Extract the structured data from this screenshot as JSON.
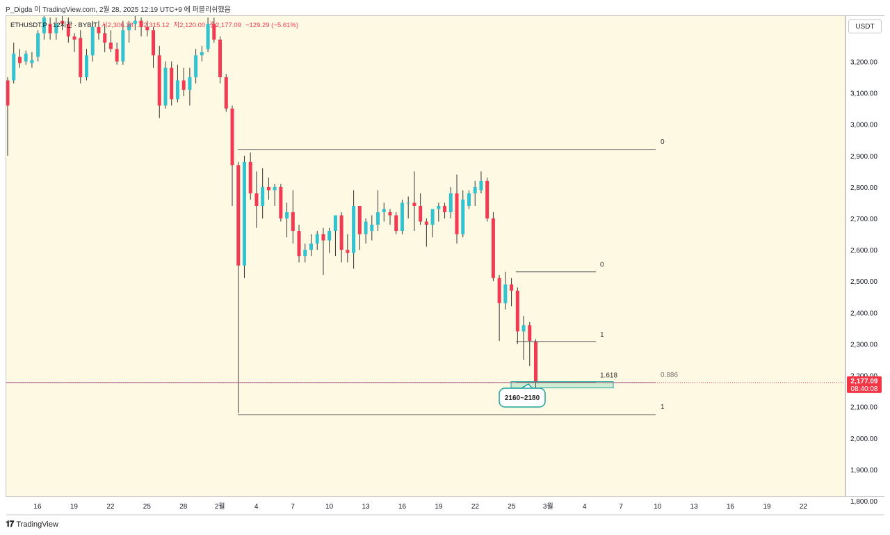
{
  "header": {
    "publisher_line": "P_Digda 이 TradingView.com, 2월 28, 2025 12:19 UTC+9 에 퍼블리쉬했음"
  },
  "legend": {
    "symbol": "ETHUSDT.P · 12시간 · BYBIT",
    "open": "시2,306.38",
    "high": "고2,315.12",
    "low": "저2,120.00",
    "close": "종2,177.09",
    "change": "−129.29 (−5.61%)"
  },
  "price_axis": {
    "currency_button": "USDT",
    "ticks": [
      "3,200.00",
      "3,100.00",
      "3,000.00",
      "2,900.00",
      "2,800.00",
      "2,700.00",
      "2,600.00",
      "2,500.00",
      "2,400.00",
      "2,300.00",
      "2,200.00",
      "2,100.00",
      "2,000.00",
      "1,900.00",
      "1,800.00"
    ],
    "last_price_label": "2,177.09",
    "countdown_label": "08:40:08"
  },
  "time_axis": {
    "ticks": [
      "16",
      "19",
      "22",
      "25",
      "28",
      "2월",
      "4",
      "7",
      "10",
      "13",
      "16",
      "19",
      "22",
      "25",
      "3월",
      "4",
      "7",
      "10",
      "13",
      "16",
      "19",
      "22"
    ]
  },
  "footer": {
    "brand": "TradingView"
  },
  "colors": {
    "background": "#fdf9e3",
    "up": "#31c3cf",
    "down": "#f23b52",
    "last_price": "#f23645",
    "fib_line": "#555555",
    "zone": "#1aa19b"
  },
  "chart_data": {
    "type": "candlestick",
    "symbol": "ETHUSDT.P",
    "timeframe": "12h",
    "ylim": [
      1790,
      3330
    ],
    "candles": [
      {
        "o": 3140,
        "h": 3150,
        "l": 2900,
        "c": 3060
      },
      {
        "o": 3140,
        "h": 3260,
        "l": 3130,
        "c": 3225
      },
      {
        "o": 3215,
        "h": 3240,
        "l": 3180,
        "c": 3195
      },
      {
        "o": 3200,
        "h": 3235,
        "l": 3190,
        "c": 3225
      },
      {
        "o": 3195,
        "h": 3230,
        "l": 3180,
        "c": 3205
      },
      {
        "o": 3215,
        "h": 3300,
        "l": 3200,
        "c": 3290
      },
      {
        "o": 3290,
        "h": 3350,
        "l": 3270,
        "c": 3340
      },
      {
        "o": 3320,
        "h": 3340,
        "l": 3270,
        "c": 3290
      },
      {
        "o": 3290,
        "h": 3340,
        "l": 3270,
        "c": 3320
      },
      {
        "o": 3330,
        "h": 3350,
        "l": 3300,
        "c": 3320
      },
      {
        "o": 3320,
        "h": 3340,
        "l": 3260,
        "c": 3280
      },
      {
        "o": 3280,
        "h": 3290,
        "l": 3230,
        "c": 3270
      },
      {
        "o": 3275,
        "h": 3300,
        "l": 3130,
        "c": 3150
      },
      {
        "o": 3150,
        "h": 3240,
        "l": 3140,
        "c": 3220
      },
      {
        "o": 3220,
        "h": 3330,
        "l": 3200,
        "c": 3310
      },
      {
        "o": 3310,
        "h": 3330,
        "l": 3270,
        "c": 3290
      },
      {
        "o": 3290,
        "h": 3320,
        "l": 3230,
        "c": 3260
      },
      {
        "o": 3260,
        "h": 3300,
        "l": 3230,
        "c": 3240
      },
      {
        "o": 3240,
        "h": 3260,
        "l": 3190,
        "c": 3200
      },
      {
        "o": 3200,
        "h": 3330,
        "l": 3190,
        "c": 3300
      },
      {
        "o": 3300,
        "h": 3330,
        "l": 3260,
        "c": 3320
      },
      {
        "o": 3320,
        "h": 3350,
        "l": 3300,
        "c": 3330
      },
      {
        "o": 3330,
        "h": 3340,
        "l": 3280,
        "c": 3310
      },
      {
        "o": 3310,
        "h": 3330,
        "l": 3280,
        "c": 3300
      },
      {
        "o": 3300,
        "h": 3310,
        "l": 3180,
        "c": 3220
      },
      {
        "o": 3220,
        "h": 3250,
        "l": 3020,
        "c": 3060
      },
      {
        "o": 3060,
        "h": 3200,
        "l": 3050,
        "c": 3180
      },
      {
        "o": 3180,
        "h": 3200,
        "l": 3060,
        "c": 3080
      },
      {
        "o": 3080,
        "h": 3190,
        "l": 3070,
        "c": 3140
      },
      {
        "o": 3140,
        "h": 3180,
        "l": 3090,
        "c": 3110
      },
      {
        "o": 3110,
        "h": 3180,
        "l": 3060,
        "c": 3150
      },
      {
        "o": 3150,
        "h": 3240,
        "l": 3130,
        "c": 3220
      },
      {
        "o": 3220,
        "h": 3250,
        "l": 3200,
        "c": 3230
      },
      {
        "o": 3240,
        "h": 3340,
        "l": 3230,
        "c": 3320
      },
      {
        "o": 3320,
        "h": 3340,
        "l": 3260,
        "c": 3270
      },
      {
        "o": 3270,
        "h": 3280,
        "l": 3130,
        "c": 3150
      },
      {
        "o": 3150,
        "h": 3160,
        "l": 3040,
        "c": 3050
      },
      {
        "o": 3050,
        "h": 3060,
        "l": 2740,
        "c": 2870
      },
      {
        "o": 2870,
        "h": 2880,
        "l": 2080,
        "c": 2550
      },
      {
        "o": 2550,
        "h": 2900,
        "l": 2510,
        "c": 2880
      },
      {
        "o": 2880,
        "h": 2910,
        "l": 2760,
        "c": 2780
      },
      {
        "o": 2780,
        "h": 2850,
        "l": 2670,
        "c": 2740
      },
      {
        "o": 2740,
        "h": 2860,
        "l": 2700,
        "c": 2800
      },
      {
        "o": 2800,
        "h": 2830,
        "l": 2760,
        "c": 2790
      },
      {
        "o": 2790,
        "h": 2810,
        "l": 2740,
        "c": 2800
      },
      {
        "o": 2800,
        "h": 2810,
        "l": 2690,
        "c": 2700
      },
      {
        "o": 2700,
        "h": 2750,
        "l": 2640,
        "c": 2720
      },
      {
        "o": 2720,
        "h": 2790,
        "l": 2620,
        "c": 2660
      },
      {
        "o": 2660,
        "h": 2680,
        "l": 2560,
        "c": 2580
      },
      {
        "o": 2580,
        "h": 2620,
        "l": 2560,
        "c": 2600
      },
      {
        "o": 2600,
        "h": 2650,
        "l": 2580,
        "c": 2620
      },
      {
        "o": 2620,
        "h": 2660,
        "l": 2600,
        "c": 2650
      },
      {
        "o": 2650,
        "h": 2670,
        "l": 2520,
        "c": 2630
      },
      {
        "o": 2630,
        "h": 2670,
        "l": 2590,
        "c": 2660
      },
      {
        "o": 2660,
        "h": 2700,
        "l": 2580,
        "c": 2710
      },
      {
        "o": 2710,
        "h": 2720,
        "l": 2560,
        "c": 2600
      },
      {
        "o": 2600,
        "h": 2650,
        "l": 2560,
        "c": 2590
      },
      {
        "o": 2590,
        "h": 2790,
        "l": 2540,
        "c": 2740
      },
      {
        "o": 2740,
        "h": 2740,
        "l": 2600,
        "c": 2650
      },
      {
        "o": 2650,
        "h": 2700,
        "l": 2620,
        "c": 2690
      },
      {
        "o": 2660,
        "h": 2710,
        "l": 2630,
        "c": 2680
      },
      {
        "o": 2680,
        "h": 2790,
        "l": 2660,
        "c": 2720
      },
      {
        "o": 2720,
        "h": 2750,
        "l": 2690,
        "c": 2730
      },
      {
        "o": 2720,
        "h": 2730,
        "l": 2680,
        "c": 2710
      },
      {
        "o": 2710,
        "h": 2720,
        "l": 2650,
        "c": 2660
      },
      {
        "o": 2660,
        "h": 2760,
        "l": 2650,
        "c": 2750
      },
      {
        "o": 2750,
        "h": 2770,
        "l": 2700,
        "c": 2750
      },
      {
        "o": 2750,
        "h": 2850,
        "l": 2660,
        "c": 2740
      },
      {
        "o": 2740,
        "h": 2780,
        "l": 2680,
        "c": 2690
      },
      {
        "o": 2690,
        "h": 2700,
        "l": 2610,
        "c": 2680
      },
      {
        "o": 2680,
        "h": 2730,
        "l": 2640,
        "c": 2730
      },
      {
        "o": 2730,
        "h": 2750,
        "l": 2690,
        "c": 2740
      },
      {
        "o": 2740,
        "h": 2750,
        "l": 2700,
        "c": 2720
      },
      {
        "o": 2720,
        "h": 2800,
        "l": 2700,
        "c": 2780
      },
      {
        "o": 2780,
        "h": 2840,
        "l": 2620,
        "c": 2650
      },
      {
        "o": 2650,
        "h": 2790,
        "l": 2640,
        "c": 2760
      },
      {
        "o": 2740,
        "h": 2790,
        "l": 2730,
        "c": 2780
      },
      {
        "o": 2780,
        "h": 2820,
        "l": 2740,
        "c": 2800
      },
      {
        "o": 2790,
        "h": 2850,
        "l": 2780,
        "c": 2820
      },
      {
        "o": 2820,
        "h": 2830,
        "l": 2690,
        "c": 2700
      },
      {
        "o": 2700,
        "h": 2720,
        "l": 2500,
        "c": 2510
      },
      {
        "o": 2510,
        "h": 2520,
        "l": 2310,
        "c": 2430
      },
      {
        "o": 2430,
        "h": 2530,
        "l": 2410,
        "c": 2490
      },
      {
        "o": 2490,
        "h": 2510,
        "l": 2420,
        "c": 2470
      },
      {
        "o": 2470,
        "h": 2480,
        "l": 2300,
        "c": 2340
      },
      {
        "o": 2340,
        "h": 2390,
        "l": 2250,
        "c": 2360
      },
      {
        "o": 2360,
        "h": 2370,
        "l": 2230,
        "c": 2310
      },
      {
        "o": 2306.38,
        "h": 2315.12,
        "l": 2120.0,
        "c": 2177.09
      }
    ],
    "fib_sets": [
      {
        "levels": [
          {
            "label": "0",
            "price": 2920
          },
          {
            "label": "0.886",
            "price": 2177
          },
          {
            "label": "1",
            "price": 2075
          }
        ]
      },
      {
        "levels": [
          {
            "label": "0",
            "price": 2530
          },
          {
            "label": "1",
            "price": 2308
          },
          {
            "label": "1.618",
            "price": 2178
          }
        ]
      }
    ],
    "zone": {
      "label": "2160~2180",
      "low": 2160,
      "high": 2180
    },
    "last_price": 2177.09
  }
}
